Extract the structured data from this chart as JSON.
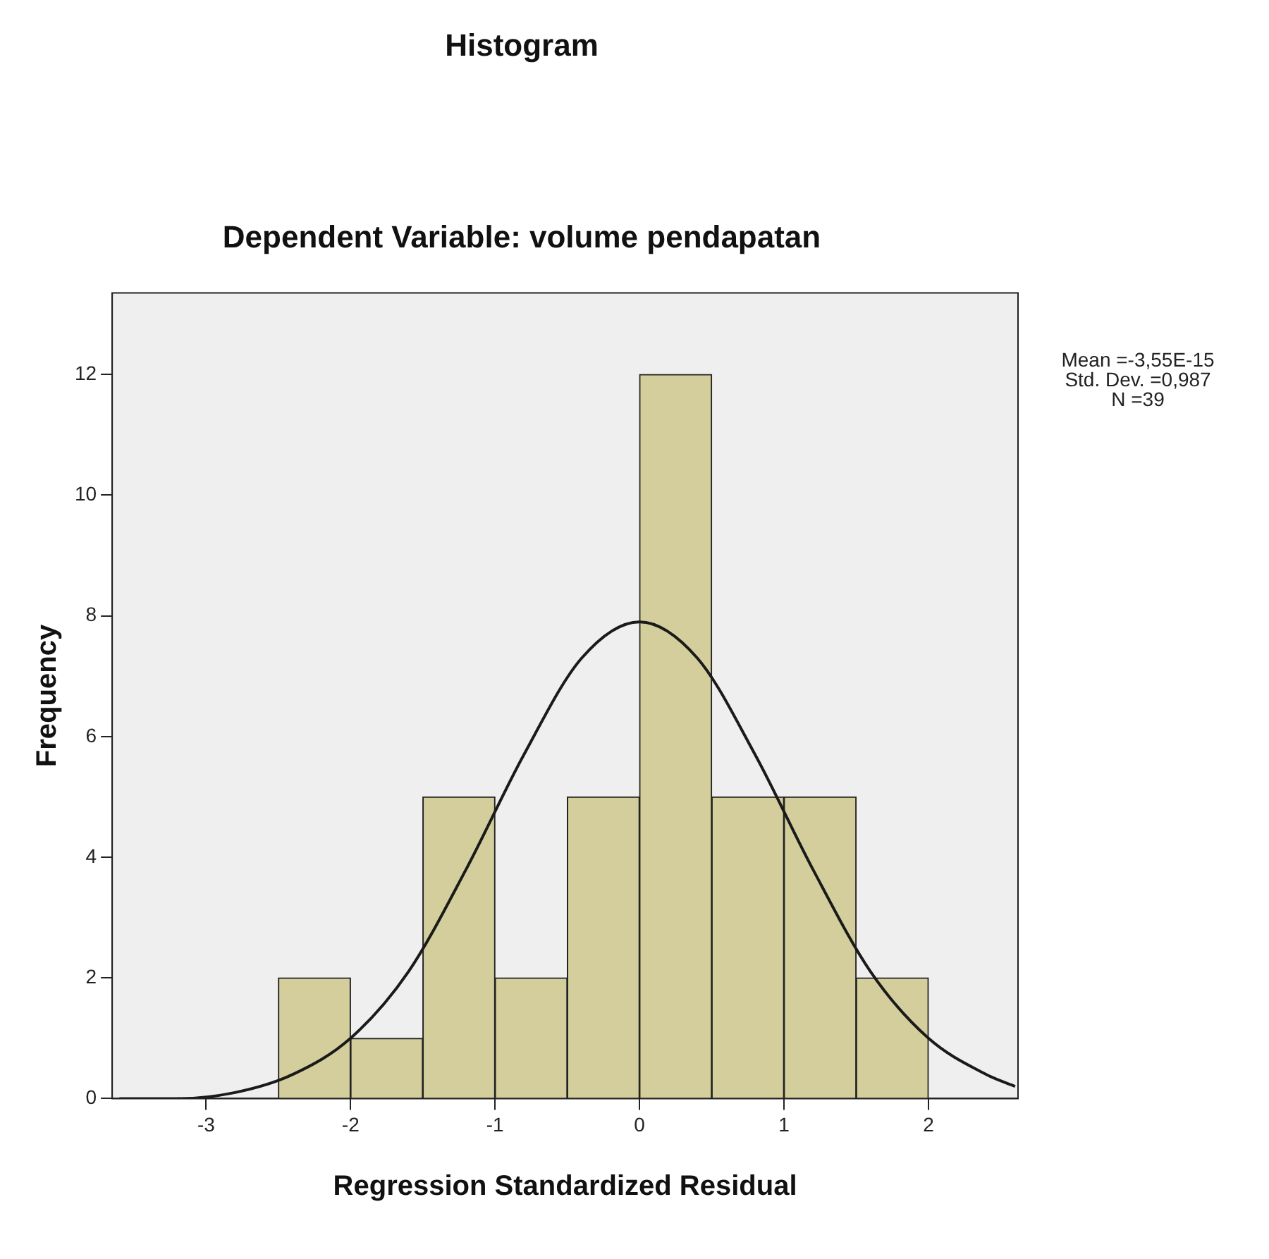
{
  "chart_data": {
    "type": "histogram",
    "title": "Histogram",
    "subtitle": "Dependent Variable: volume pendapatan",
    "xlabel": "Regression Standardized Residual",
    "ylabel": "Frequency",
    "bins": [
      -2.5,
      -2,
      -1.5,
      -1,
      -0.5,
      0,
      0.5,
      1,
      1.5,
      2
    ],
    "values": [
      2,
      1,
      5,
      2,
      5,
      12,
      5,
      5,
      2
    ],
    "color": "#d3ce9b",
    "series": [
      {
        "type": "line",
        "color": "#1a1a1a",
        "x": [
          -3.6,
          -3.2,
          -2.8,
          -2.4,
          -2.0,
          -1.6,
          -1.2,
          -0.8,
          -0.4,
          0,
          0.4,
          0.8,
          1.2,
          1.6,
          2.0,
          2.4,
          2.6
        ],
        "values": [
          0,
          0,
          0.1,
          0.4,
          1.0,
          2.1,
          3.8,
          5.7,
          7.3,
          7.9,
          7.3,
          5.7,
          3.8,
          2.1,
          1.0,
          0.4,
          0.2
        ]
      }
    ],
    "xlim": [
      -3.65,
      2.62
    ],
    "xticks": [
      -3,
      -2,
      -1,
      0,
      1,
      2
    ],
    "ylim": [
      0,
      13.35
    ],
    "yticks": [
      0,
      2,
      4,
      6,
      8,
      10,
      12
    ],
    "grid": false,
    "legend": false,
    "annotations": [
      "Mean =-3,55E-15",
      "Std. Dev. =0,987",
      "N =39"
    ]
  }
}
